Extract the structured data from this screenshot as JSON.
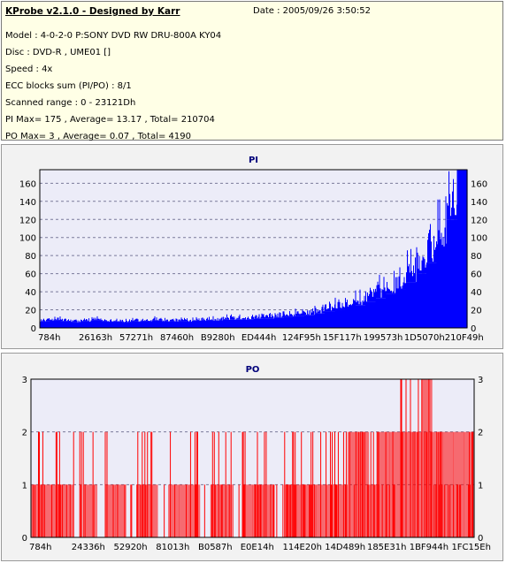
{
  "header": {
    "app_title": "KProbe v2.1.0 - Designed by Karr",
    "date": "Date : 2005/09/26 3:50:52",
    "lines": [
      "Model : 4-0-2-0 P:SONY    DVD RW DRU-800A  KY04",
      "Disc : DVD-R , UME01 []",
      "Speed : 4x",
      "ECC blocks sum (PI/PO) : 8/1",
      "Scanned range : 0 - 23121Dh",
      "PI Max= 175 , Average= 13.17 , Total= 210704",
      "PO Max= 3 , Average= 0.07 , Total= 4190"
    ]
  },
  "colors": {
    "pi_fill": "#0000ff",
    "po_fill": "#ff0000",
    "plot_bg": "#ececf8",
    "panel_bg": "#f2f2f2",
    "header_bg": "#ffffe6"
  },
  "chart_data": [
    {
      "type": "area",
      "title": "PI",
      "xlabel": "",
      "ylabel": "",
      "ylim": [
        0,
        175
      ],
      "grid": true,
      "y_ticks": [
        0,
        20,
        40,
        60,
        80,
        100,
        120,
        140,
        160
      ],
      "x_ticks": [
        "784h",
        "26163h",
        "57271h",
        "87460h",
        "B9280h",
        "ED444h",
        "124F95h",
        "15F117h",
        "199573h",
        "1D5070h",
        "210F49h"
      ],
      "x_range": [
        "0h",
        "23121Dh"
      ],
      "series": [
        {
          "values": [
            7,
            8,
            7,
            6,
            7,
            8,
            7,
            7,
            6,
            7,
            7,
            8,
            7,
            7,
            7,
            8,
            8,
            8,
            9,
            9,
            9,
            10,
            10,
            11,
            12,
            13,
            14,
            16,
            18,
            20,
            23,
            25,
            29,
            33,
            38,
            43,
            50,
            60,
            72,
            90,
            120,
            175
          ]
        }
      ]
    },
    {
      "type": "bar",
      "title": "PO",
      "xlabel": "",
      "ylabel": "",
      "ylim": [
        0,
        3
      ],
      "grid": true,
      "y_ticks": [
        0,
        1,
        2,
        3
      ],
      "x_ticks": [
        "784h",
        "24336h",
        "52920h",
        "81013h",
        "B0587h",
        "E0E14h",
        "114E20h",
        "14D489h",
        "185E31h",
        "1BF944h",
        "1FC15Eh"
      ],
      "x_range": [
        "0h",
        "23121Dh"
      ],
      "series": [
        {
          "values": [
            1,
            1,
            1,
            1,
            0,
            1,
            0,
            1,
            1,
            0,
            1,
            1,
            0,
            1,
            1,
            1,
            0,
            1,
            1,
            0,
            1,
            1,
            1,
            0,
            1,
            1,
            1,
            1,
            1,
            1,
            2,
            2,
            1,
            2,
            2,
            2,
            2,
            3,
            2,
            2,
            2,
            2
          ],
          "peaks": [
            2,
            2,
            2,
            1,
            2,
            2,
            1,
            2,
            2,
            1,
            2,
            2,
            1,
            2,
            1,
            2,
            1,
            2,
            2,
            1,
            2,
            2,
            2,
            1,
            2,
            2,
            2,
            2,
            2,
            2,
            2,
            2,
            2,
            2,
            2,
            3,
            3,
            3,
            2,
            2,
            2,
            2
          ]
        }
      ]
    }
  ]
}
